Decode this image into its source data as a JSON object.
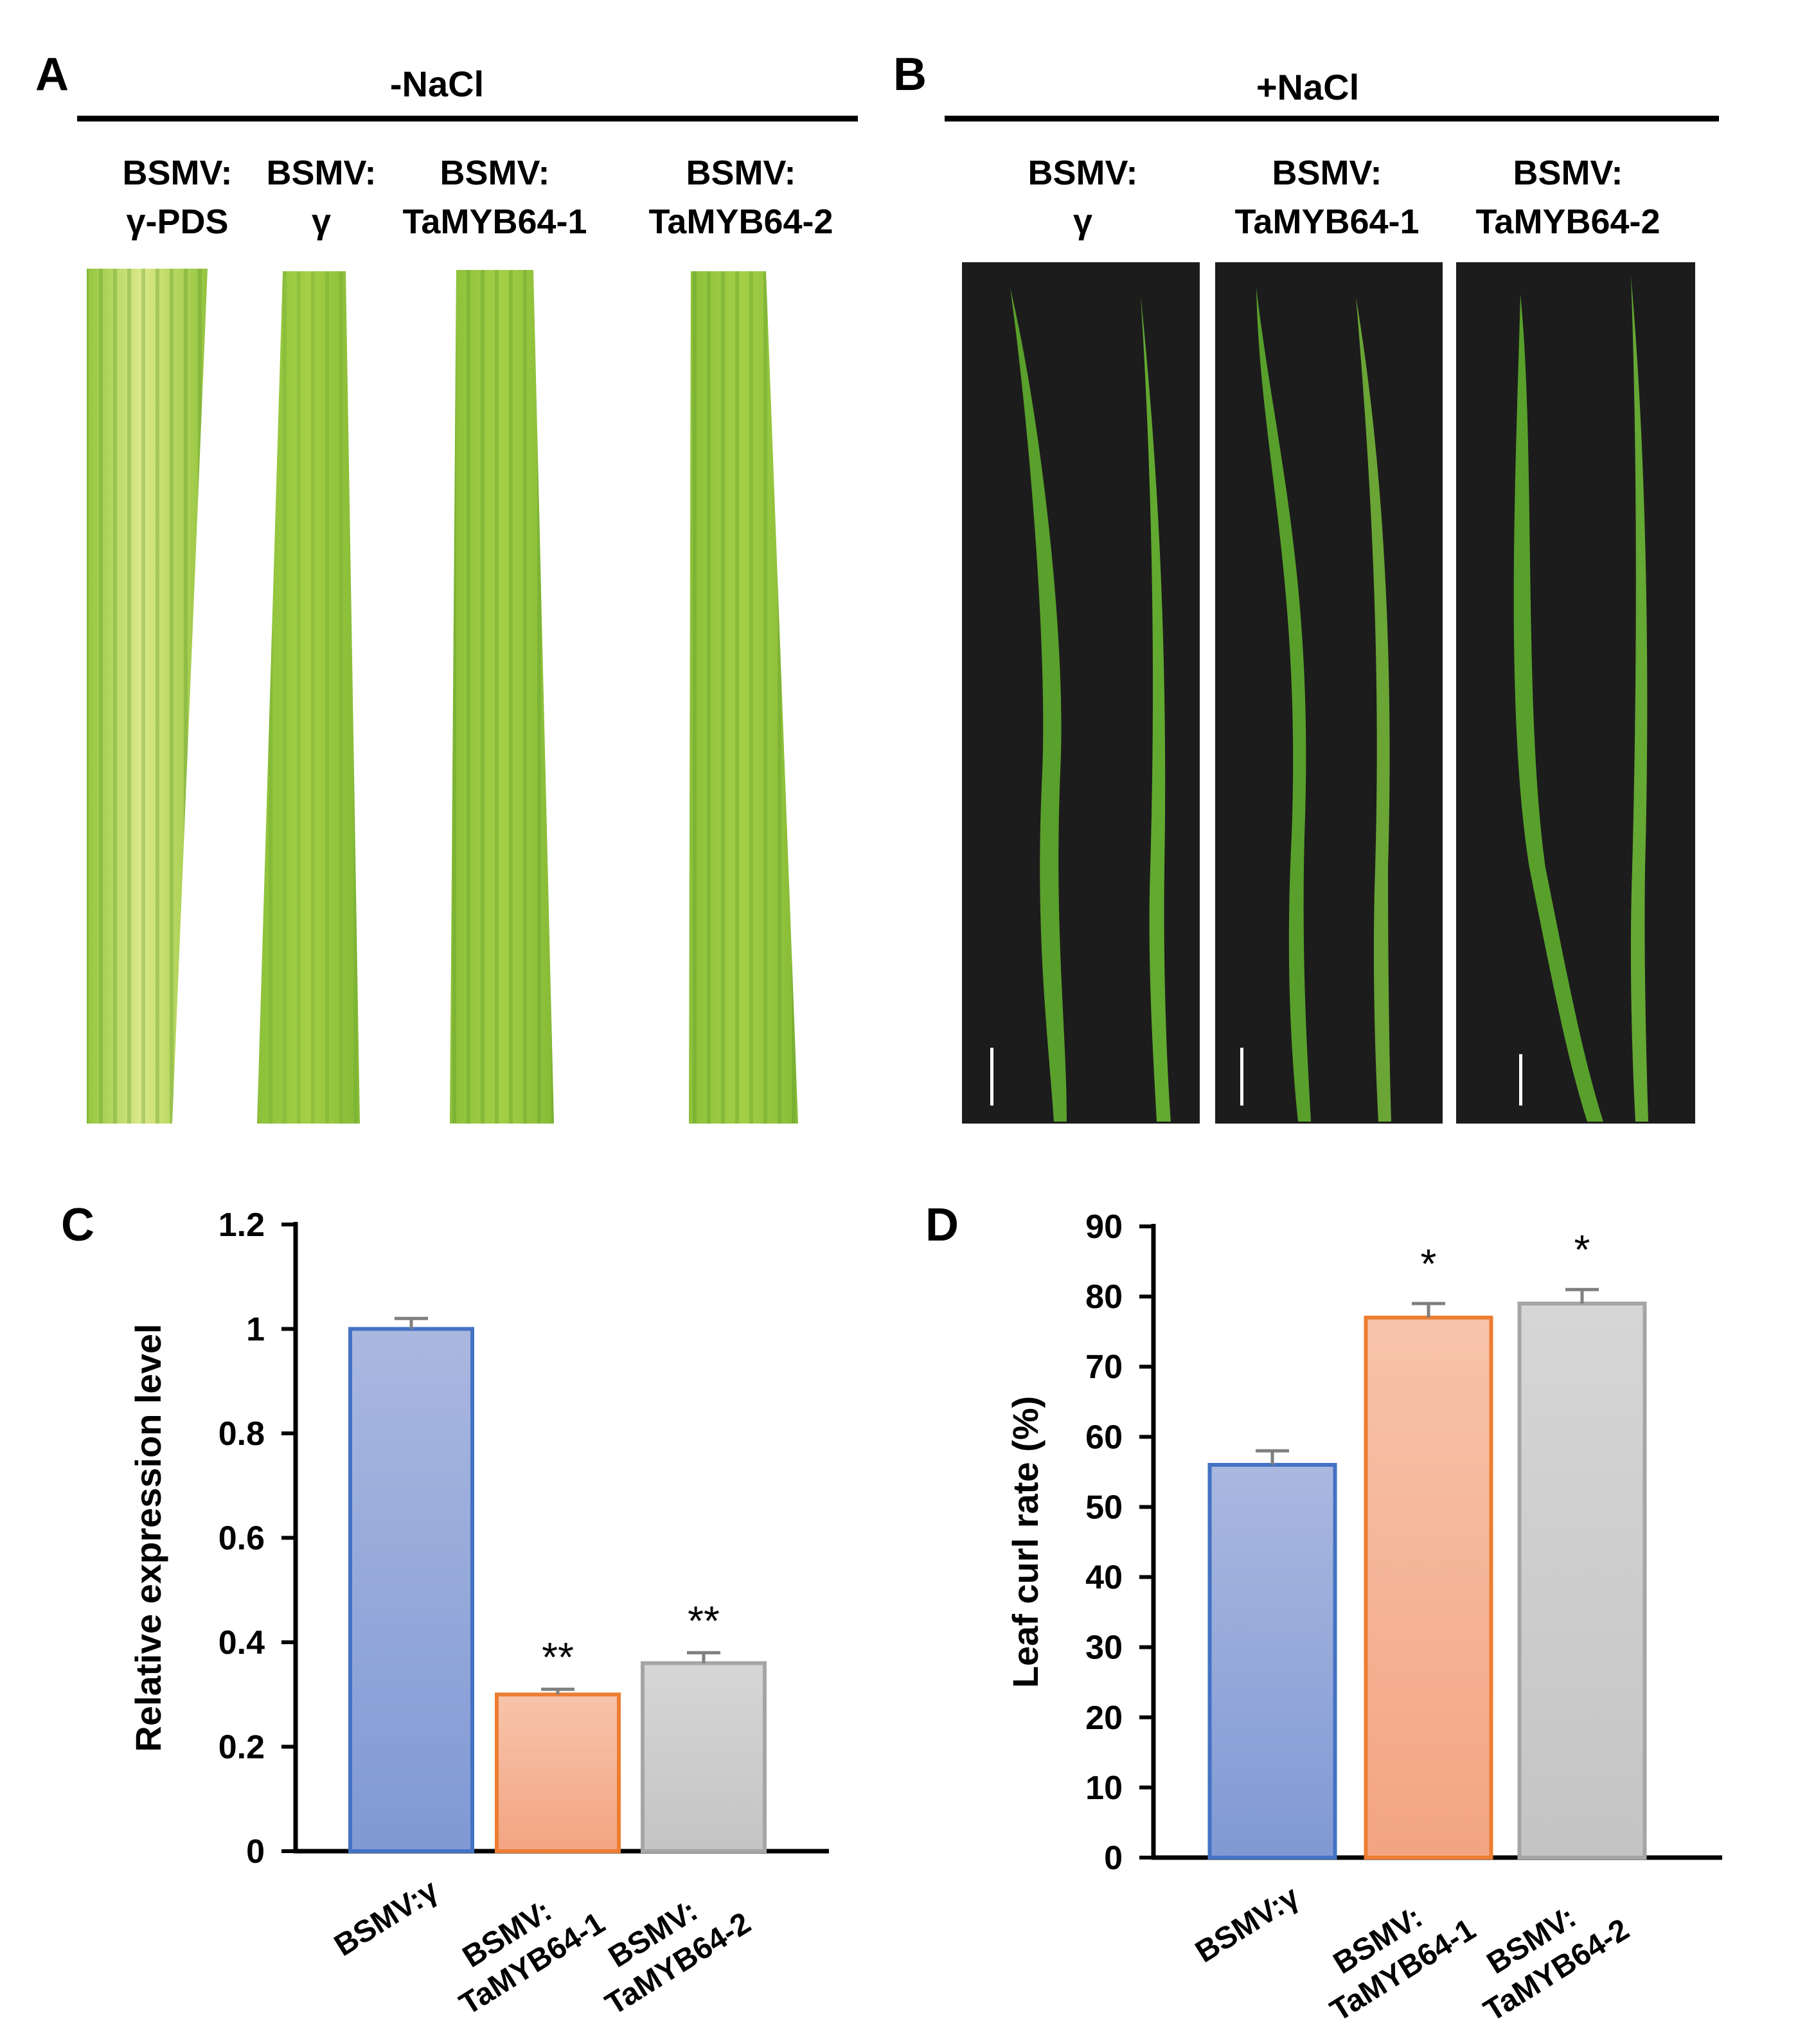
{
  "panel_a": {
    "letter": "A",
    "condition": "-NaCl",
    "columns": [
      {
        "line1": "BSMV:",
        "line2": "γ-PDS"
      },
      {
        "line1": "BSMV:",
        "line2": "γ"
      },
      {
        "line1": "BSMV:",
        "line2": "TaMYB64-1"
      },
      {
        "line1": "BSMV:",
        "line2": "TaMYB64-2"
      }
    ]
  },
  "panel_b": {
    "letter": "B",
    "condition": "+NaCl",
    "columns": [
      {
        "line1": "BSMV:",
        "line2": "γ"
      },
      {
        "line1": "BSMV:",
        "line2": "TaMYB64-1"
      },
      {
        "line1": "BSMV:",
        "line2": "TaMYB64-2"
      }
    ]
  },
  "colors": {
    "blue_edge": "#4472c4",
    "blue_top": "#aab8e0",
    "blue_bottom": "#8099d4",
    "orange_edge": "#ed7d31",
    "orange_top": "#f7c4ab",
    "orange_bottom": "#f3a482",
    "gray_edge": "#a5a5a5",
    "gray_top": "#d4d4d4",
    "gray_bottom": "#c4c4c4",
    "leaf_light": "#a8d040",
    "leaf_dark": "#6da830",
    "photo_bg": "#1c1c1c"
  },
  "chart_data": [
    {
      "panel": "C",
      "type": "bar",
      "categories": [
        "BSMV:γ",
        "BSMV:\nTaMYB64-1",
        "BSMV:\nTaMYB64-2"
      ],
      "values": [
        1.0,
        0.3,
        0.36
      ],
      "errors": [
        0.02,
        0.01,
        0.02
      ],
      "significance": [
        "",
        "**",
        "**"
      ],
      "ylabel": "Relative expression level",
      "ylim": [
        0,
        1.2
      ],
      "yticks": [
        0,
        0.2,
        0.4,
        0.6,
        0.8,
        1,
        1.2
      ],
      "yticklabels": [
        "0",
        "0.2",
        "0.4",
        "0.6",
        "0.8",
        "1",
        "1.2"
      ]
    },
    {
      "panel": "D",
      "type": "bar",
      "categories": [
        "BSMV:γ",
        "BSMV:\nTaMYB64-1",
        "BSMV:\nTaMYB64-2"
      ],
      "values": [
        56,
        77,
        79
      ],
      "errors": [
        2,
        2,
        2
      ],
      "significance": [
        "",
        "*",
        "*"
      ],
      "ylabel": "Leaf curl rate (%)",
      "ylim": [
        0,
        90
      ],
      "yticks": [
        0,
        10,
        20,
        30,
        40,
        50,
        60,
        70,
        80,
        90
      ],
      "yticklabels": [
        "0",
        "10",
        "20",
        "30",
        "40",
        "50",
        "60",
        "70",
        "80",
        "90"
      ]
    }
  ]
}
